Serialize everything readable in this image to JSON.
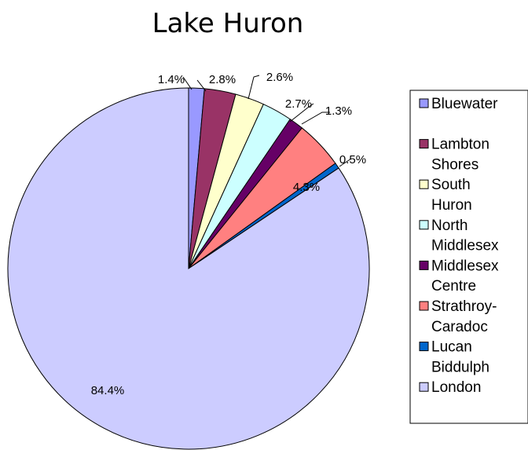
{
  "chart_data": {
    "type": "pie",
    "title": "Lake Huron",
    "slices": [
      {
        "label": "Bluewater",
        "value": 1.4,
        "display": "1.4%",
        "color": "#9999ff"
      },
      {
        "label": "Lambton Shores",
        "value": 2.8,
        "display": "2.8%",
        "color": "#993366"
      },
      {
        "label": "South Huron",
        "value": 2.6,
        "display": "2.6%",
        "color": "#ffffcc"
      },
      {
        "label": "North Middlesex",
        "value": 2.7,
        "display": "2.7%",
        "color": "#ccffff"
      },
      {
        "label": "Middlesex Centre",
        "value": 1.3,
        "display": "1.3%",
        "color": "#660066"
      },
      {
        "label": "Strathroy-Caradoc",
        "value": 4.3,
        "display": "4.3%",
        "color": "#ff8080"
      },
      {
        "label": "Lucan Biddulph",
        "value": 0.5,
        "display": "0.5%",
        "color": "#0066cc"
      },
      {
        "label": "London",
        "value": 84.4,
        "display": "84.4%",
        "color": "#ccccff"
      }
    ],
    "legend": {
      "position": "right",
      "lines": [
        {
          "text": "Bluewater",
          "swatch": 0
        },
        {
          "text": "",
          "swatch": null
        },
        {
          "text": "Lambton",
          "swatch": 1
        },
        {
          "text": "Shores",
          "swatch": null
        },
        {
          "text": "South",
          "swatch": 2
        },
        {
          "text": "Huron",
          "swatch": null
        },
        {
          "text": "North",
          "swatch": 3
        },
        {
          "text": "Middlesex",
          "swatch": null
        },
        {
          "text": "Middlesex",
          "swatch": 4
        },
        {
          "text": "Centre",
          "swatch": null
        },
        {
          "text": "Strathroy-",
          "swatch": 5
        },
        {
          "text": "Caradoc",
          "swatch": null
        },
        {
          "text": "Lucan",
          "swatch": 6
        },
        {
          "text": "Biddulph",
          "swatch": null
        },
        {
          "text": "London",
          "swatch": 7
        }
      ]
    }
  }
}
